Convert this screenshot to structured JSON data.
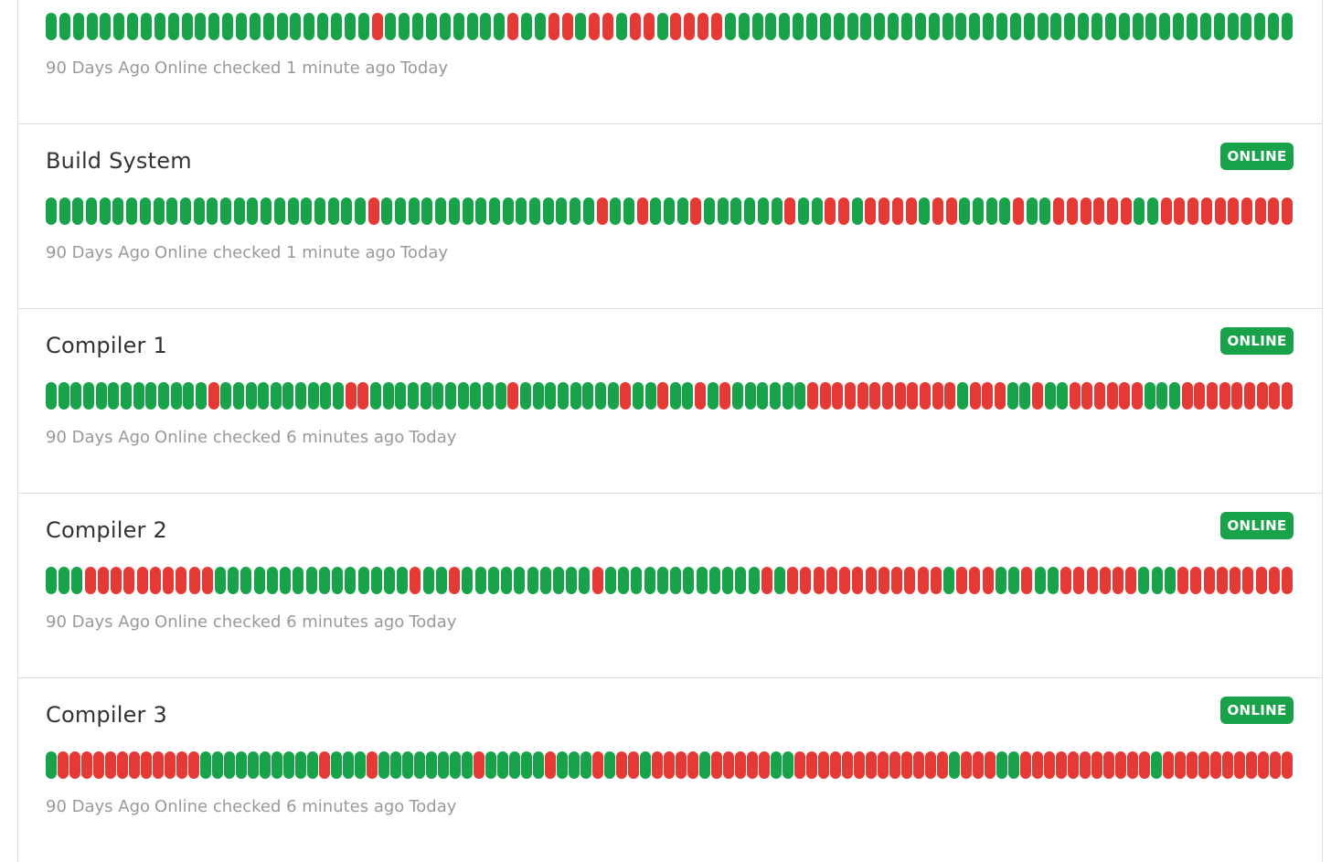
{
  "colors": {
    "up": "#18a34a",
    "down": "#e53935",
    "badge": "#18a34a"
  },
  "services": [
    {
      "name": "",
      "status": "",
      "history": [
        1,
        1,
        1,
        1,
        1,
        1,
        1,
        1,
        1,
        1,
        1,
        1,
        1,
        1,
        1,
        1,
        1,
        1,
        1,
        1,
        1,
        1,
        1,
        1,
        0,
        1,
        1,
        1,
        1,
        1,
        1,
        1,
        1,
        1,
        0,
        1,
        1,
        0,
        0,
        1,
        0,
        0,
        1,
        0,
        0,
        1,
        0,
        0,
        0,
        0,
        1,
        1,
        1,
        1,
        1,
        1,
        1,
        1,
        1,
        1,
        1,
        1,
        1,
        1,
        1,
        1,
        1,
        1,
        1,
        1,
        1,
        1,
        1,
        1,
        1,
        1,
        1,
        1,
        1,
        1,
        1,
        1,
        1,
        1,
        1,
        1,
        1,
        1,
        1,
        1,
        1,
        1
      ],
      "start_label": "90 Days Ago",
      "checked_label": "Online checked 1 minute ago",
      "end_label": "Today"
    },
    {
      "name": "Build System",
      "status": "ONLINE",
      "history": [
        1,
        1,
        1,
        1,
        1,
        1,
        1,
        1,
        1,
        1,
        1,
        1,
        1,
        1,
        1,
        1,
        1,
        1,
        1,
        1,
        1,
        1,
        1,
        1,
        0,
        1,
        1,
        1,
        1,
        1,
        1,
        1,
        1,
        1,
        1,
        1,
        1,
        1,
        1,
        1,
        1,
        0,
        1,
        1,
        0,
        1,
        1,
        1,
        0,
        1,
        1,
        1,
        1,
        1,
        1,
        0,
        1,
        1,
        0,
        0,
        1,
        0,
        0,
        0,
        0,
        1,
        0,
        0,
        1,
        1,
        1,
        1,
        0,
        1,
        1,
        0,
        0,
        0,
        0,
        0,
        0,
        1,
        1,
        0,
        0,
        0,
        0,
        0,
        0,
        0,
        0,
        0,
        0
      ],
      "start_label": "90 Days Ago",
      "checked_label": "Online checked 1 minute ago",
      "end_label": "Today"
    },
    {
      "name": "Compiler 1",
      "status": "ONLINE",
      "history": [
        1,
        1,
        1,
        1,
        1,
        1,
        1,
        1,
        1,
        1,
        1,
        1,
        1,
        0,
        1,
        1,
        1,
        1,
        1,
        1,
        1,
        1,
        1,
        1,
        0,
        0,
        1,
        1,
        1,
        1,
        1,
        1,
        1,
        1,
        1,
        1,
        1,
        0,
        1,
        1,
        1,
        1,
        1,
        1,
        1,
        1,
        0,
        1,
        1,
        0,
        1,
        1,
        0,
        1,
        0,
        1,
        1,
        1,
        1,
        1,
        1,
        0,
        0,
        0,
        0,
        0,
        0,
        0,
        0,
        0,
        0,
        0,
        0,
        1,
        0,
        0,
        0,
        1,
        1,
        0,
        1,
        1,
        0,
        0,
        0,
        0,
        0,
        0,
        1,
        1,
        1,
        0,
        0,
        0,
        0,
        0,
        0,
        0,
        0,
        0
      ],
      "start_label": "90 Days Ago",
      "checked_label": "Online checked 6 minutes ago",
      "end_label": "Today"
    },
    {
      "name": "Compiler 2",
      "status": "ONLINE",
      "history": [
        1,
        1,
        1,
        0,
        0,
        0,
        0,
        0,
        0,
        0,
        0,
        0,
        0,
        1,
        1,
        1,
        1,
        1,
        1,
        1,
        1,
        1,
        1,
        1,
        1,
        1,
        1,
        1,
        0,
        1,
        1,
        0,
        1,
        1,
        1,
        1,
        1,
        1,
        1,
        1,
        1,
        1,
        0,
        1,
        1,
        1,
        1,
        1,
        1,
        1,
        1,
        1,
        1,
        1,
        1,
        0,
        1,
        0,
        0,
        0,
        0,
        0,
        0,
        0,
        0,
        0,
        0,
        0,
        0,
        1,
        0,
        0,
        0,
        1,
        1,
        0,
        1,
        1,
        0,
        0,
        0,
        0,
        0,
        0,
        1,
        1,
        1,
        0,
        0,
        0,
        0,
        0,
        0,
        0,
        0,
        0
      ],
      "start_label": "90 Days Ago",
      "checked_label": "Online checked 6 minutes ago",
      "end_label": "Today"
    },
    {
      "name": "Compiler 3",
      "status": "ONLINE",
      "history": [
        1,
        0,
        0,
        0,
        0,
        0,
        0,
        0,
        0,
        0,
        0,
        0,
        0,
        1,
        1,
        1,
        1,
        1,
        1,
        1,
        1,
        1,
        1,
        0,
        1,
        1,
        1,
        0,
        1,
        1,
        1,
        1,
        1,
        1,
        1,
        1,
        0,
        1,
        1,
        1,
        1,
        1,
        0,
        1,
        1,
        1,
        0,
        1,
        0,
        0,
        1,
        0,
        0,
        0,
        0,
        1,
        0,
        0,
        0,
        0,
        0,
        1,
        1,
        0,
        0,
        0,
        0,
        0,
        0,
        0,
        0,
        0,
        0,
        0,
        0,
        0,
        1,
        0,
        0,
        0,
        1,
        1,
        0,
        0,
        0,
        0,
        0,
        0,
        0,
        0,
        0,
        0,
        0,
        1,
        0,
        0,
        0,
        0,
        0,
        0,
        0,
        0,
        0,
        0,
        0
      ],
      "start_label": "90 Days Ago",
      "checked_label": "Online checked 6 minutes ago",
      "end_label": "Today"
    }
  ]
}
